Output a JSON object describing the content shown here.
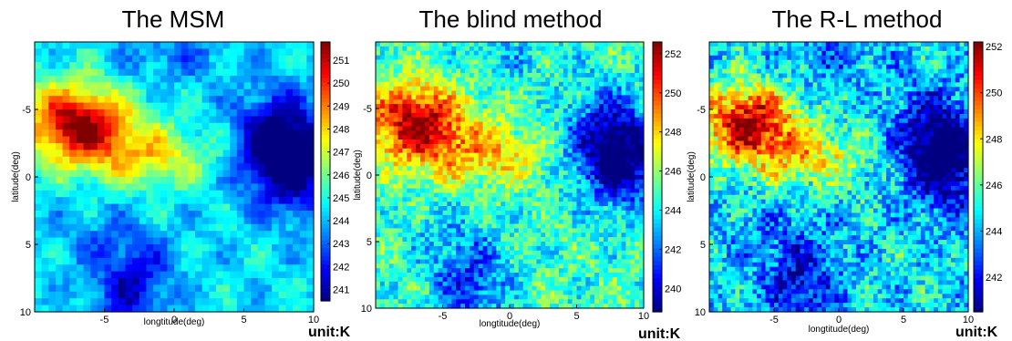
{
  "chart_data": [
    {
      "type": "heatmap",
      "title": "The MSM",
      "xlabel": "longtitude(deg)",
      "ylabel": "latitude(deg)",
      "unit_label": "unit:K",
      "xlim": [
        -10,
        10
      ],
      "ylim": [
        -10,
        10
      ],
      "y_inverted": true,
      "x_ticks": [
        -5,
        0,
        5,
        10
      ],
      "y_ticks": [
        -5,
        0,
        5,
        10
      ],
      "colorbar_range": [
        240.5,
        251.8
      ],
      "colorbar_ticks": [
        241,
        242,
        243,
        244,
        245,
        246,
        247,
        248,
        249,
        250,
        251
      ],
      "colormap": "jet",
      "texture": "smooth",
      "hotspot": {
        "x": -7,
        "y": -4,
        "value": 251.5
      },
      "cold_regions": [
        {
          "x": 7,
          "y": -2.5,
          "value": 240.8
        },
        {
          "x": 9,
          "y": -1,
          "value": 241
        },
        {
          "x": -3,
          "y": 8,
          "value": 241.5
        }
      ],
      "mean_value": 244.5
    },
    {
      "type": "heatmap",
      "title": "The blind method",
      "xlabel": "longtitude(deg)",
      "ylabel": "latitude(deg)",
      "unit_label": "unit:K",
      "xlim": [
        -10,
        10
      ],
      "ylim": [
        -10,
        10
      ],
      "y_inverted": true,
      "x_ticks": [
        -5,
        0,
        5,
        10
      ],
      "y_ticks": [
        -5,
        0,
        5,
        10
      ],
      "colorbar_range": [
        238.8,
        252.6
      ],
      "colorbar_ticks": [
        240,
        242,
        244,
        246,
        248,
        250,
        252
      ],
      "colormap": "jet",
      "texture": "noisy",
      "hotspot": {
        "x": -7,
        "y": -4,
        "value": 252
      },
      "cold_regions": [
        {
          "x": 7,
          "y": -2.5,
          "value": 240
        },
        {
          "x": 9,
          "y": -1,
          "value": 240.5
        },
        {
          "x": -3,
          "y": 8,
          "value": 241
        }
      ],
      "mean_value": 244.8
    },
    {
      "type": "heatmap",
      "title": "The R-L method",
      "xlabel": "longtitude(deg)",
      "ylabel": "latitude(deg)",
      "unit_label": "unit:K",
      "xlim": [
        -10,
        10
      ],
      "ylim": [
        -10,
        10
      ],
      "y_inverted": true,
      "x_ticks": [
        -5,
        0,
        5,
        10
      ],
      "y_ticks": [
        -5,
        0,
        5,
        10
      ],
      "colorbar_range": [
        240.5,
        252.2
      ],
      "colorbar_ticks": [
        242,
        244,
        246,
        248,
        250,
        252
      ],
      "colormap": "jet",
      "texture": "noisy",
      "hotspot": {
        "x": -7,
        "y": -4,
        "value": 251.5
      },
      "cold_regions": [
        {
          "x": 7,
          "y": -2.5,
          "value": 241
        },
        {
          "x": 9,
          "y": -1,
          "value": 241.2
        },
        {
          "x": -3,
          "y": 8,
          "value": 241.5
        }
      ],
      "mean_value": 244.6
    }
  ]
}
